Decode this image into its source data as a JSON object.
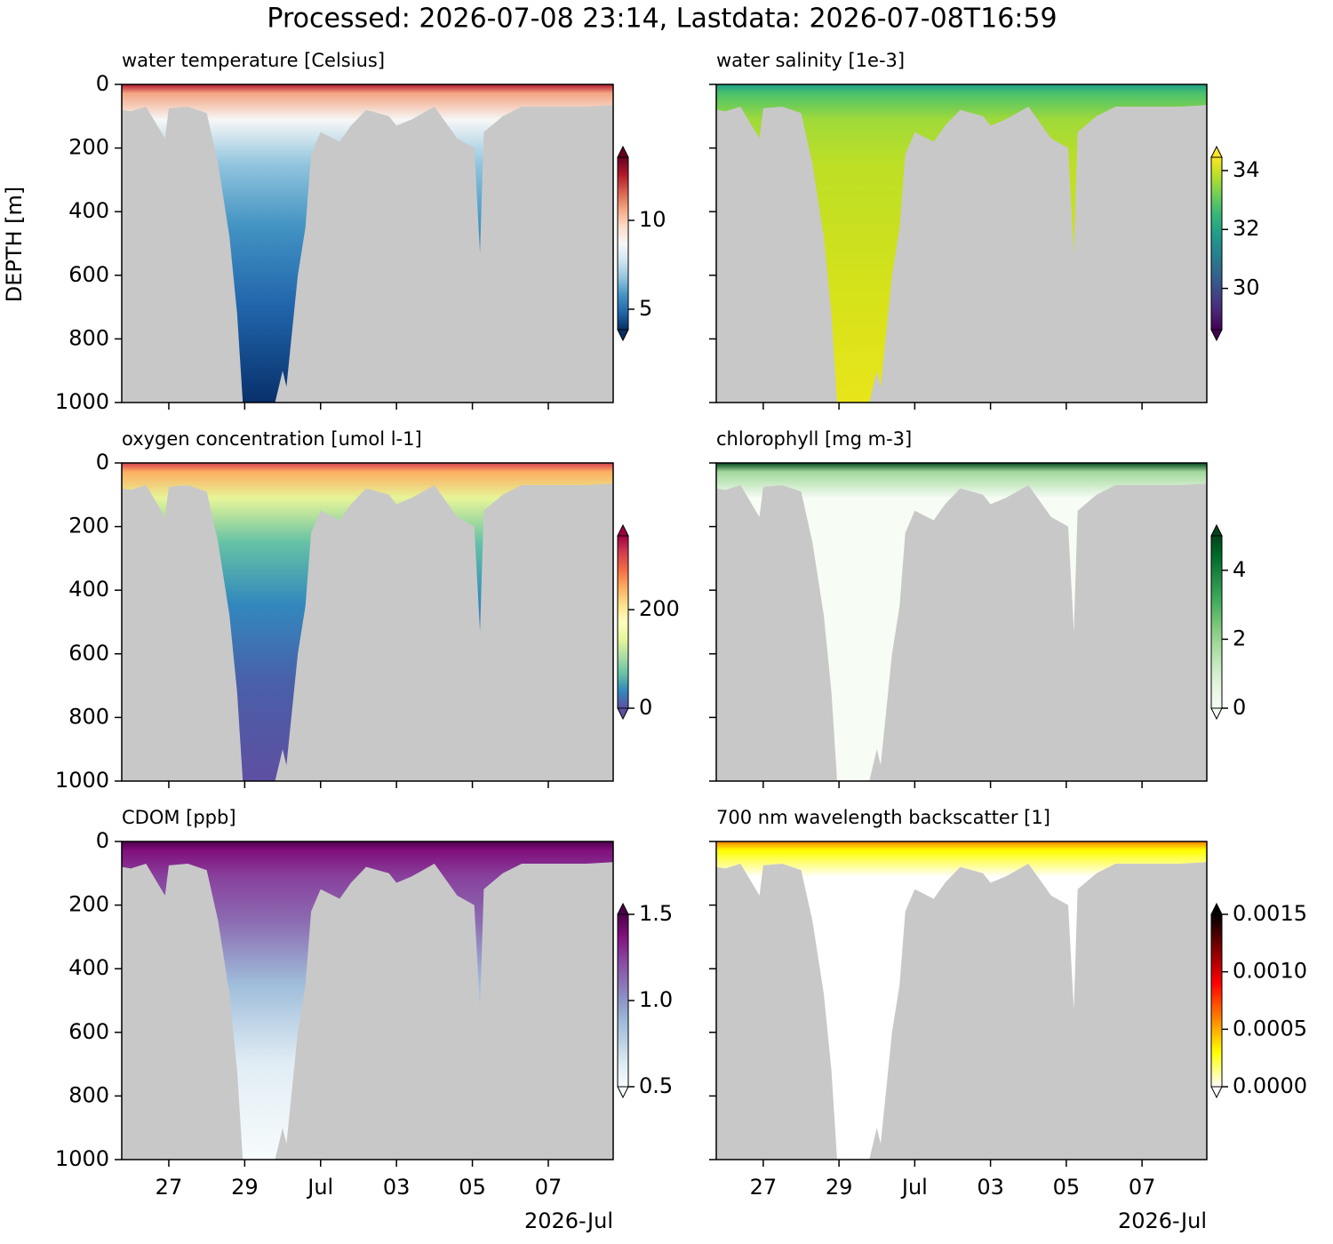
{
  "title": "Processed: 2026-07-08 23:14, Lastdata: 2026-07-08T16:59",
  "data_extent": {
    "x": [
      25.76,
      26.0,
      26.4,
      26.9,
      27.0,
      27.5,
      28.0,
      28.3,
      28.6,
      28.8,
      28.95,
      29.5,
      29.8,
      30.0,
      30.1,
      30.4,
      30.6,
      30.75,
      31.0,
      31.5,
      31.8,
      32.2,
      32.8,
      33.0,
      33.4,
      34.0,
      34.6,
      35.05,
      35.2,
      35.3,
      35.8,
      36.3,
      37.0,
      38.0,
      38.71
    ],
    "depth": [
      80,
      85,
      70,
      170,
      75,
      70,
      90,
      250,
      480,
      720,
      1000,
      1000,
      1000,
      900,
      950,
      600,
      450,
      220,
      150,
      180,
      130,
      80,
      100,
      130,
      110,
      70,
      170,
      200,
      530,
      150,
      100,
      70,
      70,
      70,
      65
    ]
  },
  "chart_data": [
    {
      "type": "section",
      "title": "water temperature [Celsius]",
      "y_label": "DEPTH [m]",
      "xlim": [
        25.76,
        38.71
      ],
      "xticks": [
        27,
        29,
        31,
        33,
        35,
        37
      ],
      "ylim": [
        1000,
        0
      ],
      "yticks": [
        0,
        200,
        400,
        600,
        800,
        1000
      ],
      "clim": [
        3.85,
        13.55
      ],
      "cticks": [
        5,
        10
      ],
      "colormap": [
        "#053061",
        "#2166ac",
        "#4393c3",
        "#92c5de",
        "#d1e5f0",
        "#f7f7f7",
        "#fddbc7",
        "#f4a582",
        "#d6604d",
        "#b2182b",
        "#67001f"
      ],
      "field_colors": [
        "#b2182b",
        "#f4a582",
        "#f7f7f7",
        "#92c5de",
        "#4393c3",
        "#2166ac",
        "#08306b"
      ]
    },
    {
      "type": "section",
      "title": "water salinity [1e-3]",
      "xlim": [
        25.76,
        38.71
      ],
      "xticks": [
        27,
        29,
        31,
        33,
        35,
        37
      ],
      "ylim": [
        1000,
        0
      ],
      "yticks": [
        0,
        200,
        400,
        600,
        800,
        1000
      ],
      "clim": [
        28.6,
        34.45
      ],
      "cticks": [
        30,
        32,
        34
      ],
      "colormap": [
        "#440154",
        "#482878",
        "#3e4989",
        "#31688e",
        "#26828e",
        "#1f9e89",
        "#35b779",
        "#6ece58",
        "#b5de2b",
        "#fde725"
      ],
      "field_colors": [
        "#1f9e89",
        "#4ac16d",
        "#a0da39",
        "#bddf26",
        "#c8e020",
        "#d8e219",
        "#e8e51a"
      ]
    },
    {
      "type": "section",
      "title": "oxygen concentration [umol l-1]",
      "xlim": [
        25.76,
        38.71
      ],
      "xticks": [
        27,
        29,
        31,
        33,
        35,
        37
      ],
      "ylim": [
        1000,
        0
      ],
      "yticks": [
        0,
        200,
        400,
        600,
        800,
        1000
      ],
      "clim": [
        0,
        350
      ],
      "cticks": [
        0,
        200
      ],
      "colormap": [
        "#5e4fa2",
        "#3288bd",
        "#66c2a5",
        "#abdda4",
        "#e6f598",
        "#ffffbf",
        "#fee08b",
        "#fdae61",
        "#f46d43",
        "#d53e4f",
        "#9e0142"
      ],
      "field_colors": [
        "#d53e4f",
        "#fdae61",
        "#e6f598",
        "#66c2a5",
        "#3288bd",
        "#4a5fa8",
        "#5e4fa2"
      ]
    },
    {
      "type": "section",
      "title": "chlorophyll [mg m-3]",
      "xlim": [
        25.76,
        38.71
      ],
      "xticks": [
        27,
        29,
        31,
        33,
        35,
        37
      ],
      "ylim": [
        1000,
        0
      ],
      "yticks": [
        0,
        200,
        400,
        600,
        800,
        1000
      ],
      "clim": [
        0,
        5
      ],
      "cticks": [
        0,
        2,
        4
      ],
      "colormap": [
        "#f7fcf5",
        "#e5f5e0",
        "#c7e9c0",
        "#a1d99b",
        "#74c476",
        "#41ab5d",
        "#238b45",
        "#006d2c",
        "#00441b"
      ],
      "field_colors": [
        "#00441b",
        "#a1d99b",
        "#f7fcf5",
        "#f7fcf5",
        "#f7fcf5",
        "#f7fcf5",
        "#f7fcf5"
      ]
    },
    {
      "type": "section",
      "title": "CDOM [ppb]",
      "x_offset_label": "2026-Jul",
      "xlim": [
        25.76,
        38.71
      ],
      "xticks": [
        {
          "value": 27,
          "label": "27"
        },
        {
          "value": 29,
          "label": "29"
        },
        {
          "value": 31,
          "label": "Jul"
        },
        {
          "value": 33,
          "label": "03"
        },
        {
          "value": 35,
          "label": "05"
        },
        {
          "value": 37,
          "label": "07"
        }
      ],
      "ylim": [
        1000,
        0
      ],
      "yticks": [
        0,
        200,
        400,
        600,
        800,
        1000
      ],
      "clim": [
        0.5,
        1.5
      ],
      "cticks": [
        0.5,
        {
          "value": 1,
          "label": "1.0"
        },
        1.5
      ],
      "colormap": [
        "#f7fcfd",
        "#e0ecf4",
        "#bfd3e6",
        "#9ebcda",
        "#8c96c6",
        "#8c6bb1",
        "#88419d",
        "#810f7c",
        "#4d004b"
      ],
      "field_colors": [
        "#4d004b",
        "#810f7c",
        "#88419d",
        "#8c6bb1",
        "#9ebcda",
        "#e0ecf4",
        "#f7fcfd"
      ]
    },
    {
      "type": "section",
      "title": "700 nm wavelength backscatter [1]",
      "x_offset_label": "2026-Jul",
      "xlim": [
        25.76,
        38.71
      ],
      "xticks": [
        {
          "value": 27,
          "label": "27"
        },
        {
          "value": 29,
          "label": "29"
        },
        {
          "value": 31,
          "label": "Jul"
        },
        {
          "value": 33,
          "label": "03"
        },
        {
          "value": 35,
          "label": "05"
        },
        {
          "value": 37,
          "label": "07"
        }
      ],
      "ylim": [
        1000,
        0
      ],
      "yticks": [
        0,
        200,
        400,
        600,
        800,
        1000
      ],
      "clim": [
        0,
        0.0015
      ],
      "cticks": [
        {
          "value": 0,
          "label": "0.0000"
        },
        {
          "value": 0.0005,
          "label": "0.0005"
        },
        {
          "value": 0.001,
          "label": "0.0010"
        },
        {
          "value": 0.0015,
          "label": "0.0015"
        }
      ],
      "colormap": [
        "#ffffff",
        "#ffff80",
        "#ffff00",
        "#ffc000",
        "#ff8000",
        "#ff4000",
        "#ff0000",
        "#c00000",
        "#800000",
        "#400000",
        "#000000"
      ],
      "field_colors": [
        "#ff8000",
        "#ffff00",
        "#ffffff",
        "#ffffff",
        "#ffffff",
        "#ffffff",
        "#ffffff"
      ]
    }
  ]
}
